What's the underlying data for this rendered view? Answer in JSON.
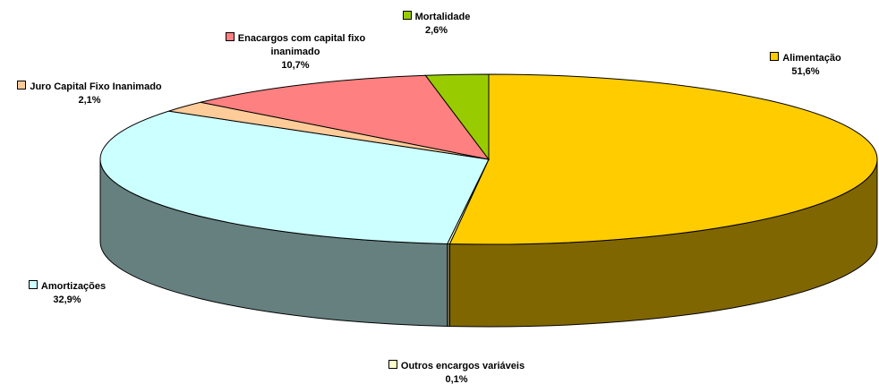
{
  "chart_data": {
    "type": "pie",
    "categories": [
      "Alimentação",
      "Outros encargos variáveis",
      "Amortizações",
      "Juro Capital Fixo Inanimado",
      "Enacargos com capital fixo inanimado",
      "Mortalidade"
    ],
    "values": [
      51.6,
      0.1,
      32.9,
      2.1,
      10.7,
      2.6
    ],
    "value_labels": [
      "51,6%",
      "0,1%",
      "32,9%",
      "2,1%",
      "10,7%",
      "2,6%"
    ],
    "colors": [
      "#ffcc00",
      "#ffffcc",
      "#ccffff",
      "#ffcc99",
      "#ff8080",
      "#99cc00"
    ]
  }
}
